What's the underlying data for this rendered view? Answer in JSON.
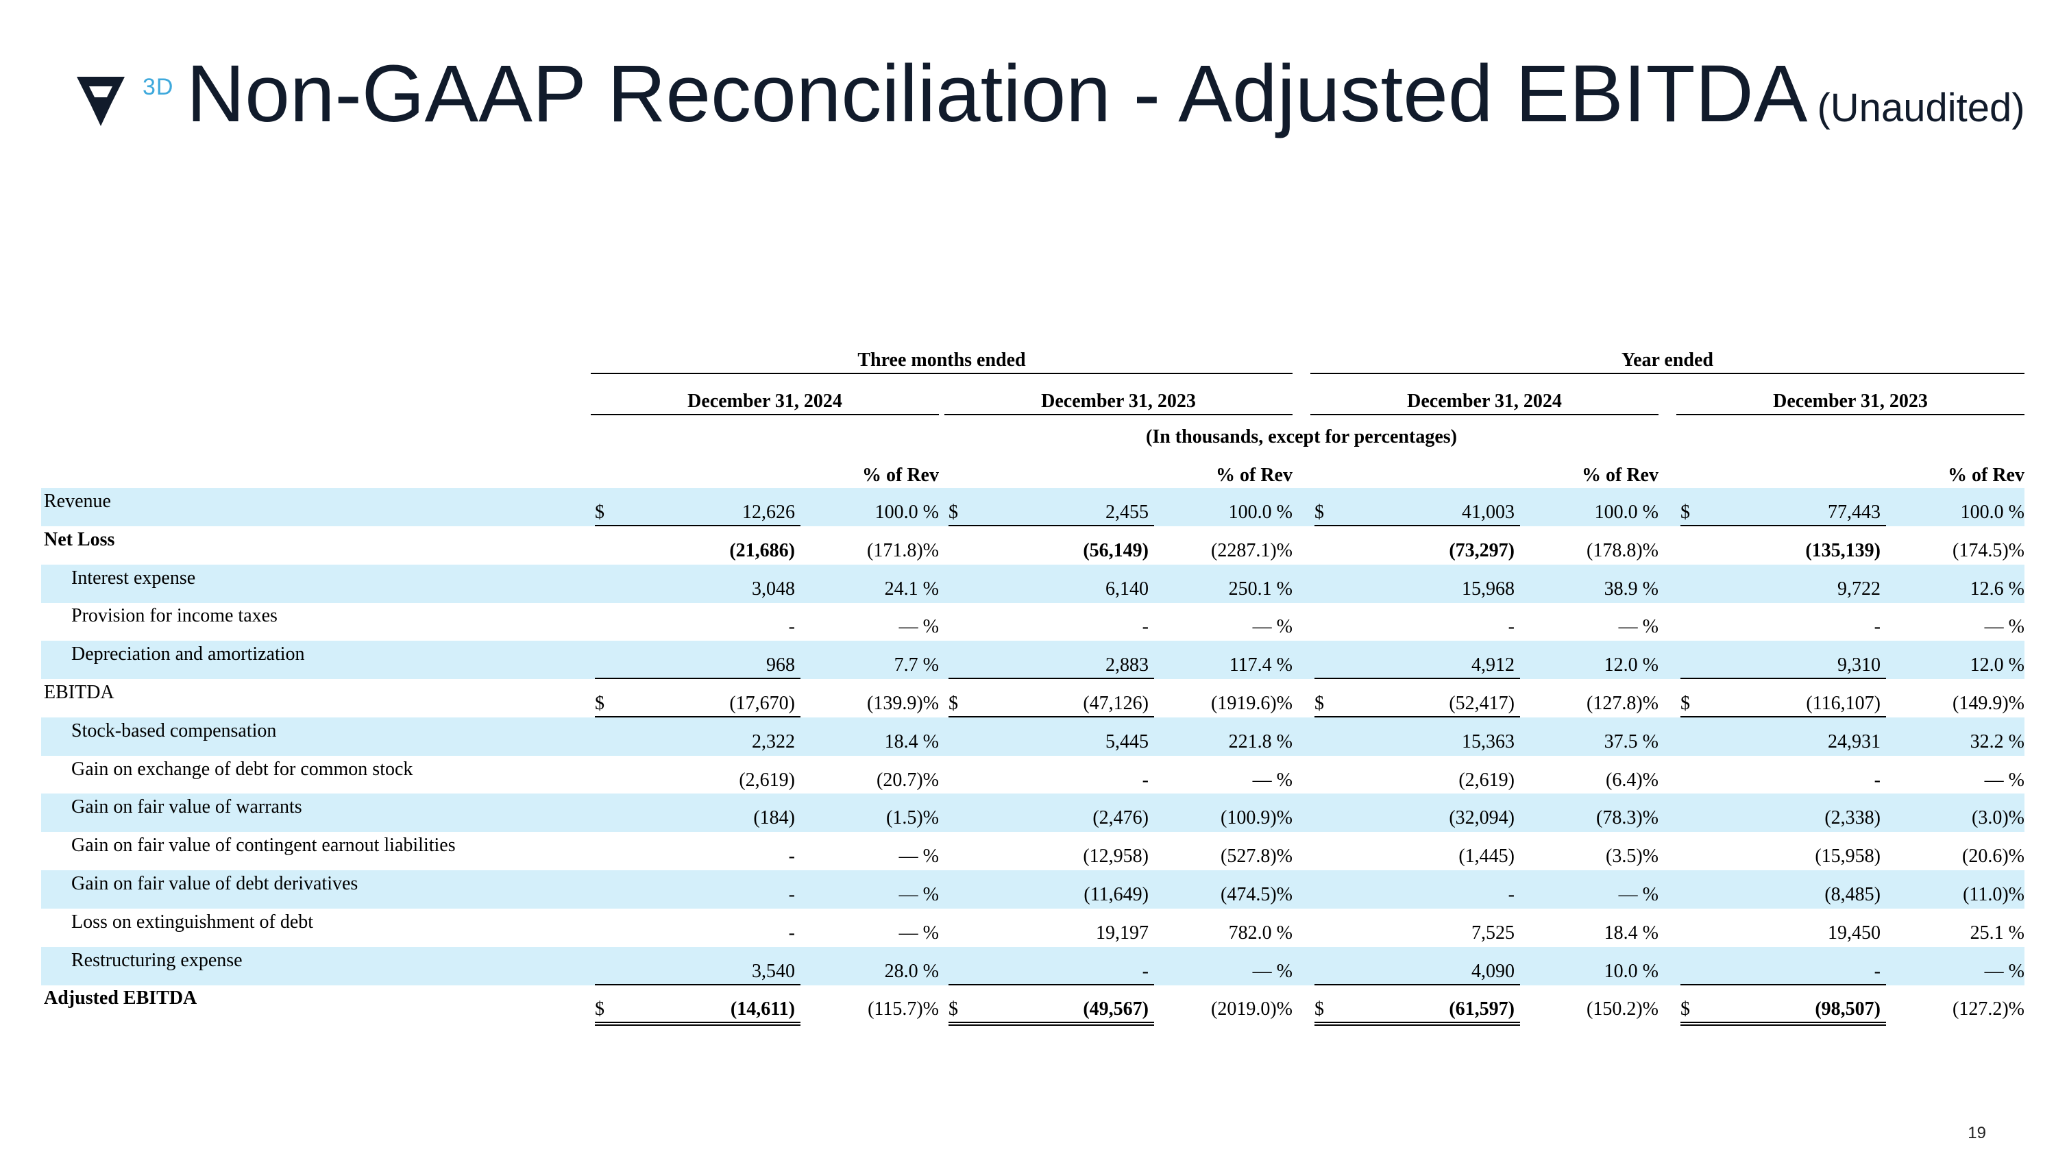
{
  "header": {
    "logo_text": "3D",
    "title": "Non-GAAP Reconciliation - Adjusted EBITDA",
    "subtitle": "(Unaudited)"
  },
  "table": {
    "group_headers": [
      "Three months ended",
      "Year ended"
    ],
    "period_headers": [
      "December 31, 2024",
      "December 31, 2023",
      "December 31, 2024",
      "December 31, 2023"
    ],
    "units_note": "(In thousands, except for percentages)",
    "pct_header": "% of Rev",
    "rows": [
      {
        "label": "Revenue",
        "dollar": "$",
        "values": [
          "12,626",
          "100.0 %",
          "2,455",
          "100.0 %",
          "41,003",
          "100.0 %",
          "77,443",
          "100.0 %"
        ]
      },
      {
        "label": "Net Loss",
        "dollar": "",
        "values": [
          "(21,686)",
          "(171.8)%",
          "(56,149)",
          "(2287.1)%",
          "(73,297)",
          "(178.8)%",
          "(135,139)",
          "(174.5)%"
        ]
      },
      {
        "label": "Interest expense",
        "dollar": "",
        "values": [
          "3,048",
          "24.1 %",
          "6,140",
          "250.1 %",
          "15,968",
          "38.9 %",
          "9,722",
          "12.6 %"
        ]
      },
      {
        "label": "Provision for income taxes",
        "dollar": "",
        "values": [
          "-",
          "— %",
          "-",
          "— %",
          "-",
          "— %",
          "-",
          "— %"
        ]
      },
      {
        "label": "Depreciation and amortization",
        "dollar": "",
        "values": [
          "968",
          "7.7 %",
          "2,883",
          "117.4 %",
          "4,912",
          "12.0 %",
          "9,310",
          "12.0 %"
        ]
      },
      {
        "label": "EBITDA",
        "dollar": "$",
        "values": [
          "(17,670)",
          "(139.9)%",
          "(47,126)",
          "(1919.6)%",
          "(52,417)",
          "(127.8)%",
          "(116,107)",
          "(149.9)%"
        ]
      },
      {
        "label": "Stock-based compensation",
        "dollar": "",
        "values": [
          "2,322",
          "18.4 %",
          "5,445",
          "221.8 %",
          "15,363",
          "37.5 %",
          "24,931",
          "32.2 %"
        ]
      },
      {
        "label": "Gain on exchange of debt for common stock",
        "dollar": "",
        "values": [
          "(2,619)",
          "(20.7)%",
          "-",
          "— %",
          "(2,619)",
          "(6.4)%",
          "-",
          "— %"
        ]
      },
      {
        "label": "Gain on fair value of warrants",
        "dollar": "",
        "values": [
          "(184)",
          "(1.5)%",
          "(2,476)",
          "(100.9)%",
          "(32,094)",
          "(78.3)%",
          "(2,338)",
          "(3.0)%"
        ]
      },
      {
        "label": "Gain on fair value of contingent earnout liabilities",
        "dollar": "",
        "values": [
          "-",
          "— %",
          "(12,958)",
          "(527.8)%",
          "(1,445)",
          "(3.5)%",
          "(15,958)",
          "(20.6)%"
        ]
      },
      {
        "label": "Gain on fair value of debt derivatives",
        "dollar": "",
        "values": [
          "-",
          "— %",
          "(11,649)",
          "(474.5)%",
          "-",
          "— %",
          "(8,485)",
          "(11.0)%"
        ]
      },
      {
        "label": "Loss on extinguishment of debt",
        "dollar": "",
        "values": [
          "-",
          "— %",
          "19,197",
          "782.0 %",
          "7,525",
          "18.4 %",
          "19,450",
          "25.1 %"
        ]
      },
      {
        "label": "Restructuring expense",
        "dollar": "",
        "values": [
          "3,540",
          "28.0 %",
          "-",
          "— %",
          "4,090",
          "10.0 %",
          "-",
          "— %"
        ]
      },
      {
        "label": "Adjusted EBITDA",
        "dollar": "$",
        "values": [
          "(14,611)",
          "(115.7)%",
          "(49,567)",
          "(2019.0)%",
          "(61,597)",
          "(150.2)%",
          "(98,507)",
          "(127.2)%"
        ]
      }
    ]
  },
  "page_number": "19"
}
